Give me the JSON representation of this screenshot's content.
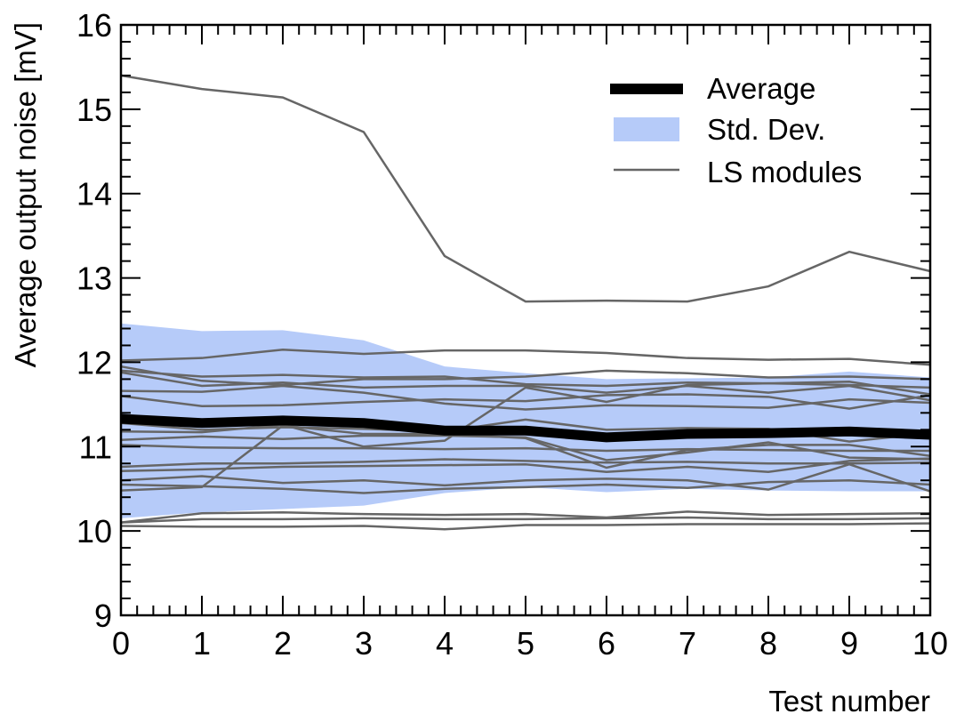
{
  "chart_data": {
    "type": "line",
    "xlabel": "Test number",
    "ylabel": "Average output noise [mV]",
    "xlim": [
      0,
      10
    ],
    "ylim": [
      9,
      16
    ],
    "x": [
      0,
      1,
      2,
      3,
      4,
      5,
      6,
      7,
      8,
      9,
      10
    ],
    "x_ticks": [
      "0",
      "1",
      "2",
      "3",
      "4",
      "5",
      "6",
      "7",
      "8",
      "9",
      "10"
    ],
    "y_ticks": [
      "9",
      "10",
      "11",
      "12",
      "13",
      "14",
      "15",
      "16"
    ],
    "grid": false,
    "legend_position": "top-right",
    "legend": {
      "average": "Average",
      "std_dev": "Std. Dev.",
      "modules": "LS modules"
    },
    "colors": {
      "average": "#000000",
      "std_band": "#b6cbf9",
      "modules": "#666666"
    },
    "average": [
      11.33,
      11.28,
      11.31,
      11.28,
      11.19,
      11.19,
      11.11,
      11.15,
      11.16,
      11.18,
      11.14
    ],
    "std_upper": [
      12.46,
      12.37,
      12.38,
      12.26,
      11.95,
      11.87,
      11.8,
      11.81,
      11.82,
      11.89,
      11.82
    ],
    "std_lower": [
      10.15,
      10.22,
      10.26,
      10.3,
      10.45,
      10.52,
      10.46,
      10.5,
      10.48,
      10.47,
      10.47
    ],
    "modules": [
      [
        15.4,
        15.24,
        15.14,
        14.73,
        13.26,
        12.72,
        12.73,
        12.72,
        12.9,
        13.31,
        13.08
      ],
      [
        12.02,
        12.05,
        12.15,
        12.1,
        12.14,
        12.14,
        12.11,
        12.05,
        12.03,
        12.04,
        11.97
      ],
      [
        11.95,
        11.78,
        11.73,
        11.8,
        11.8,
        11.83,
        11.9,
        11.87,
        11.82,
        11.83,
        11.8
      ],
      [
        11.9,
        11.83,
        11.85,
        11.82,
        11.83,
        11.74,
        11.72,
        11.76,
        11.75,
        11.73,
        11.7
      ],
      [
        11.88,
        11.72,
        11.76,
        11.7,
        11.72,
        11.72,
        11.64,
        11.72,
        11.64,
        11.72,
        11.55
      ],
      [
        11.66,
        11.65,
        11.72,
        11.64,
        11.51,
        11.44,
        11.49,
        11.48,
        11.46,
        11.56,
        11.52
      ],
      [
        11.6,
        11.48,
        11.49,
        11.53,
        11.56,
        11.54,
        11.61,
        11.62,
        11.59,
        11.45,
        11.61
      ],
      [
        11.28,
        11.2,
        11.23,
        11.21,
        11.18,
        11.32,
        11.2,
        11.22,
        11.21,
        11.06,
        11.16
      ],
      [
        11.18,
        11.17,
        11.26,
        11.0,
        11.07,
        11.7,
        11.53,
        11.73,
        11.75,
        11.77,
        11.62
      ],
      [
        11.08,
        11.12,
        11.09,
        11.13,
        11.13,
        11.11,
        10.84,
        10.93,
        11.05,
        10.87,
        10.85
      ],
      [
        11.02,
        10.99,
        10.98,
        10.98,
        10.97,
        10.98,
        10.95,
        10.97,
        10.96,
        10.95,
        10.95
      ],
      [
        10.76,
        10.8,
        10.8,
        10.82,
        10.85,
        10.83,
        10.81,
        10.82,
        10.8,
        10.8,
        10.81
      ],
      [
        10.71,
        10.73,
        10.76,
        10.77,
        10.78,
        10.79,
        10.7,
        10.76,
        10.7,
        10.83,
        10.86
      ],
      [
        10.6,
        10.65,
        10.57,
        10.6,
        10.54,
        10.6,
        10.62,
        10.6,
        10.49,
        10.79,
        10.47
      ],
      [
        10.55,
        10.53,
        10.5,
        10.45,
        10.5,
        10.52,
        10.55,
        10.51,
        10.58,
        10.6,
        10.55
      ],
      [
        10.48,
        10.52,
        11.25,
        11.15,
        11.15,
        11.1,
        10.75,
        10.96,
        11.02,
        11.02,
        10.89
      ],
      [
        10.1,
        10.21,
        10.22,
        10.2,
        10.19,
        10.2,
        10.16,
        10.23,
        10.19,
        10.2,
        10.21
      ],
      [
        10.1,
        10.14,
        10.14,
        10.15,
        10.14,
        10.14,
        10.15,
        10.16,
        10.14,
        10.14,
        10.15
      ],
      [
        10.06,
        10.05,
        10.05,
        10.06,
        10.02,
        10.07,
        10.07,
        10.08,
        10.08,
        10.08,
        10.09
      ]
    ]
  }
}
